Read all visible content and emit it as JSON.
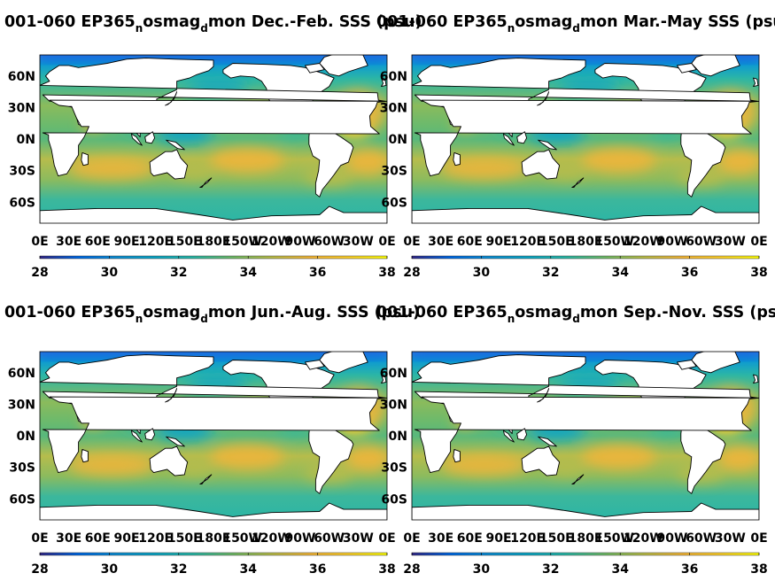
{
  "figure_title": "",
  "colors": {
    "land": "#ffffff",
    "coast": "#000000",
    "colormap_parula": [
      "#352a87",
      "#0268e1",
      "#108ed2",
      "#0fa5c4",
      "#2bb6a6",
      "#73ba67",
      "#b9bc4b",
      "#f1b53b",
      "#fbcf2e",
      "#f9fb0e"
    ]
  },
  "chart_data": [
    {
      "type": "heatmap",
      "title": {
        "pre": "001-060 EP365",
        "sub1": "n",
        "mid": "osmag",
        "sub2": "d",
        "post": "mon Dec.-Feb. SSS (psu)"
      },
      "season": "Dec.-Feb.",
      "variable": "SSS",
      "units": "psu",
      "x_ticks": [
        "0E",
        "30E",
        "60E",
        "90E",
        "120E",
        "150E",
        "180E",
        "150W",
        "120W",
        "90W",
        "60W",
        "30W",
        "0E"
      ],
      "y_ticks": [
        "60N",
        "30N",
        "0N",
        "30S",
        "60S"
      ],
      "xlim": [
        0,
        360
      ],
      "ylim": [
        -80,
        80
      ],
      "colorbar": {
        "ticks": [
          "28",
          "30",
          "32",
          "34",
          "36",
          "38"
        ],
        "min": 28,
        "max": 38,
        "colormap": "parula"
      }
    },
    {
      "type": "heatmap",
      "title": {
        "pre": "001-060 EP365",
        "sub1": "n",
        "mid": "osmag",
        "sub2": "d",
        "post": "mon Mar.-May SSS (psu)"
      },
      "season": "Mar.-May",
      "variable": "SSS",
      "units": "psu",
      "x_ticks": [
        "0E",
        "30E",
        "60E",
        "90E",
        "120E",
        "150E",
        "180E",
        "150W",
        "120W",
        "90W",
        "60W",
        "30W",
        "0E"
      ],
      "y_ticks": [
        "60N",
        "30N",
        "0N",
        "30S",
        "60S"
      ],
      "xlim": [
        0,
        360
      ],
      "ylim": [
        -80,
        80
      ],
      "colorbar": {
        "ticks": [
          "28",
          "30",
          "32",
          "34",
          "36",
          "38"
        ],
        "min": 28,
        "max": 38,
        "colormap": "parula"
      }
    },
    {
      "type": "heatmap",
      "title": {
        "pre": "001-060 EP365",
        "sub1": "n",
        "mid": "osmag",
        "sub2": "d",
        "post": "mon Jun.-Aug. SSS (psu)"
      },
      "season": "Jun.-Aug.",
      "variable": "SSS",
      "units": "psu",
      "x_ticks": [
        "0E",
        "30E",
        "60E",
        "90E",
        "120E",
        "150E",
        "180E",
        "150W",
        "120W",
        "90W",
        "60W",
        "30W",
        "0E"
      ],
      "y_ticks": [
        "60N",
        "30N",
        "0N",
        "30S",
        "60S"
      ],
      "xlim": [
        0,
        360
      ],
      "ylim": [
        -80,
        80
      ],
      "colorbar": {
        "ticks": [
          "28",
          "30",
          "32",
          "34",
          "36",
          "38"
        ],
        "min": 28,
        "max": 38,
        "colormap": "parula"
      }
    },
    {
      "type": "heatmap",
      "title": {
        "pre": "001-060 EP365",
        "sub1": "n",
        "mid": "osmag",
        "sub2": "d",
        "post": "mon Sep.-Nov. SSS (psu)"
      },
      "season": "Sep.-Nov.",
      "variable": "SSS",
      "units": "psu",
      "x_ticks": [
        "0E",
        "30E",
        "60E",
        "90E",
        "120E",
        "150E",
        "180E",
        "150W",
        "120W",
        "90W",
        "60W",
        "30W",
        "0E"
      ],
      "y_ticks": [
        "60N",
        "30N",
        "0N",
        "30S",
        "60S"
      ],
      "xlim": [
        0,
        360
      ],
      "ylim": [
        -80,
        80
      ],
      "colorbar": {
        "ticks": [
          "28",
          "30",
          "32",
          "34",
          "36",
          "38"
        ],
        "min": 28,
        "max": 38,
        "colormap": "parula"
      }
    }
  ]
}
